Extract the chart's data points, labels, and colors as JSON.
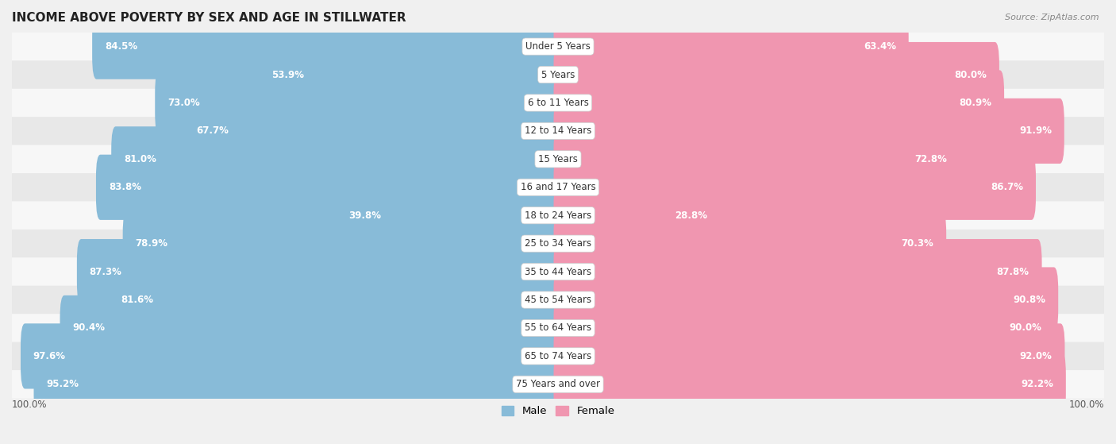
{
  "title": "INCOME ABOVE POVERTY BY SEX AND AGE IN STILLWATER",
  "source": "Source: ZipAtlas.com",
  "categories": [
    "Under 5 Years",
    "5 Years",
    "6 to 11 Years",
    "12 to 14 Years",
    "15 Years",
    "16 and 17 Years",
    "18 to 24 Years",
    "25 to 34 Years",
    "35 to 44 Years",
    "45 to 54 Years",
    "55 to 64 Years",
    "65 to 74 Years",
    "75 Years and over"
  ],
  "male_values": [
    84.5,
    53.9,
    73.0,
    67.7,
    81.0,
    83.8,
    39.8,
    78.9,
    87.3,
    81.6,
    90.4,
    97.6,
    95.2
  ],
  "female_values": [
    63.4,
    80.0,
    80.9,
    91.9,
    72.8,
    86.7,
    28.8,
    70.3,
    87.8,
    90.8,
    90.0,
    92.0,
    92.2
  ],
  "male_color": "#88bbd8",
  "female_color": "#f096b0",
  "background_color": "#f0f0f0",
  "row_bg_light": "#f7f7f7",
  "row_bg_dark": "#e8e8e8",
  "max_value": 100.0,
  "legend_male": "Male",
  "legend_female": "Female",
  "title_fontsize": 11,
  "label_fontsize": 8.5,
  "category_fontsize": 8.5,
  "source_fontsize": 8
}
